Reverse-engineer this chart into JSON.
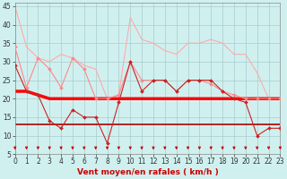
{
  "x": [
    0,
    1,
    2,
    3,
    4,
    5,
    6,
    7,
    8,
    9,
    10,
    11,
    12,
    13,
    14,
    15,
    16,
    17,
    18,
    19,
    20,
    21,
    22,
    23
  ],
  "series": [
    {
      "name": "rafales_top",
      "color": "#ffaaaa",
      "linewidth": 0.8,
      "marker": null,
      "markersize": 0,
      "values": [
        45,
        34,
        31,
        30,
        32,
        31,
        29,
        28,
        20,
        21,
        42,
        36,
        35,
        33,
        32,
        35,
        35,
        36,
        35,
        32,
        32,
        27,
        20,
        20
      ]
    },
    {
      "name": "rafales_with_markers",
      "color": "#ff8888",
      "linewidth": 0.8,
      "marker": "D",
      "markersize": 2.0,
      "values": [
        34,
        23,
        31,
        28,
        23,
        31,
        28,
        20,
        20,
        21,
        30,
        25,
        25,
        25,
        22,
        25,
        25,
        24,
        22,
        21,
        20,
        20,
        20,
        20
      ]
    },
    {
      "name": "vent_max_with_markers",
      "color": "#cc2222",
      "linewidth": 0.8,
      "marker": "D",
      "markersize": 2.0,
      "values": [
        29,
        22,
        21,
        14,
        12,
        17,
        15,
        15,
        8,
        19,
        30,
        22,
        25,
        25,
        22,
        25,
        25,
        25,
        22,
        20,
        19,
        10,
        12,
        12
      ]
    },
    {
      "name": "vent_moyen_bold",
      "color": "#ff0000",
      "linewidth": 2.5,
      "marker": null,
      "markersize": 0,
      "values": [
        22,
        22,
        21,
        20,
        20,
        20,
        20,
        20,
        20,
        20,
        20,
        20,
        20,
        20,
        20,
        20,
        20,
        20,
        20,
        20,
        20,
        20,
        20,
        20
      ]
    },
    {
      "name": "vent_min_flat",
      "color": "#aa0000",
      "linewidth": 1.2,
      "marker": null,
      "markersize": 0,
      "values": [
        13,
        13,
        13,
        13,
        13,
        13,
        13,
        13,
        13,
        13,
        13,
        13,
        13,
        13,
        13,
        13,
        13,
        13,
        13,
        13,
        13,
        13,
        13,
        13
      ]
    }
  ],
  "xlim": [
    0,
    23
  ],
  "ylim": [
    5,
    46
  ],
  "yticks": [
    5,
    10,
    15,
    20,
    25,
    30,
    35,
    40,
    45
  ],
  "xticks": [
    0,
    1,
    2,
    3,
    4,
    5,
    6,
    7,
    8,
    9,
    10,
    11,
    12,
    13,
    14,
    15,
    16,
    17,
    18,
    19,
    20,
    21,
    22,
    23
  ],
  "xlabel": "Vent moyen/en rafales ( km/h )",
  "xlabel_color": "#cc0000",
  "xlabel_fontsize": 6.5,
  "background_color": "#d0f0f0",
  "grid_color": "#aacccc",
  "tick_label_fontsize": 5.5,
  "arrow_color": "#cc0000"
}
